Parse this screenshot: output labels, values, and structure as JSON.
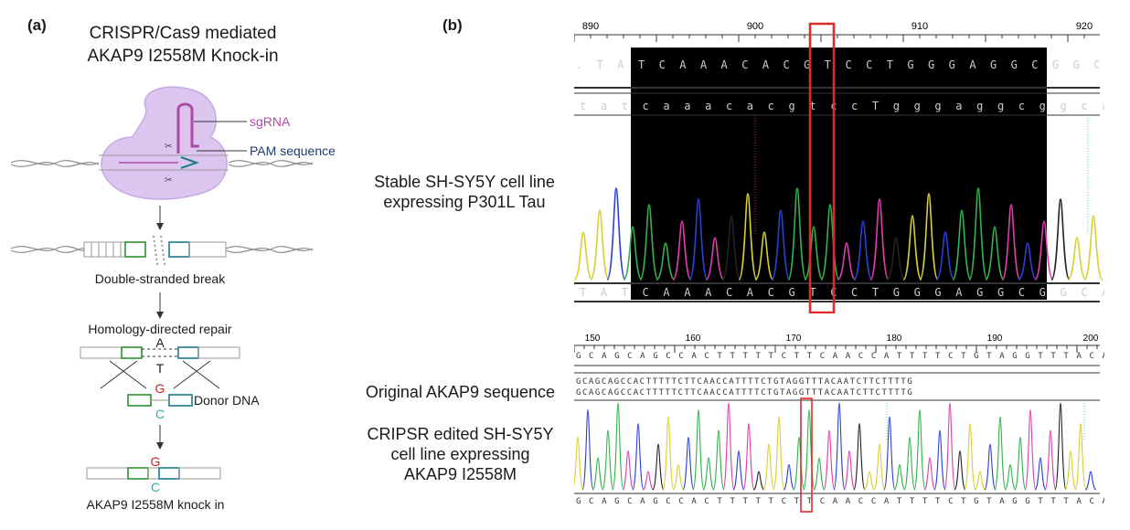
{
  "panel_a": {
    "letter": "(a)",
    "title_line1": "CRISPR/Cas9 mediated",
    "title_line2": "AKAP9 I2558M Knock-in",
    "sgrna_label": "sgRNA",
    "pam_label": "PAM sequence",
    "dsb_label": "Double-stranded break",
    "hdr_label": "Homology-directed repair",
    "donor_label": "Donor DNA",
    "final_label": "AKAP9 I2558M knock in",
    "base_A": "A",
    "base_T": "T",
    "base_G": "G",
    "base_C": "C",
    "colors": {
      "sgrna": "#b04aa9",
      "pam": "#1f3b6e",
      "green": "#2f8f2f",
      "teal": "#1f7a8c",
      "G": "#d42020",
      "C": "#36a9a9",
      "cas9": "#dcc6ef"
    }
  },
  "panel_b": {
    "letter": "(b)",
    "top": {
      "side_label_line1": "Stable SH-SY5Y cell line",
      "side_label_line2": "expressing P301L Tau",
      "ruler_ticks": [
        "890",
        "900",
        "910",
        "920"
      ],
      "seq_top": ". T A T C A A A C A C G T C C T G G G A G G C G G C A G T G T G",
      "seq_mid": "t a t c a a a c a c g t c c T g g g a g g c g g c a g t g t g",
      "seq_bottom": "T A T C A A A C A C G T C C T G G G A G G C G G C A G T G T G"
    },
    "bottom": {
      "original_label": "Original AKAP9 sequence",
      "edited_line1": "CRIPSR edited SH-SY5Y",
      "edited_line2": "cell line expressing",
      "edited_line3": "AKAP9 I2558M",
      "ruler_ticks": [
        "150",
        "160",
        "170",
        "180",
        "190",
        "200"
      ],
      "seq_ref": "G C A G C A G C C A C T T T T T C T T C A A C C A T T T T C T G T A G G T T T A C A A T C T T C T T T T G",
      "seq_align1": "GCAGCAGCCACTTTTTCTTCAACCATTTTCTGTAGGTTTACAATCTTCTTTTG",
      "seq_align2": "GCAGCAGCCACTTTTTCTTCAACCATTTTCTGTAGGTTTACAATCTTCTTTTG",
      "seq_read": "G C A G C A G C C A C T T T T T C T T C A A C C A T T T T C T G T A G G T T T A C A A T C T T C T T T T G"
    },
    "colors": {
      "highlight_box": "#e02a2a",
      "trace_A": "#2fb34a",
      "trace_C": "#2b3fd6",
      "trace_G": "#222222",
      "trace_T": "#e23bb0",
      "trace_y": "#d8d030"
    }
  }
}
